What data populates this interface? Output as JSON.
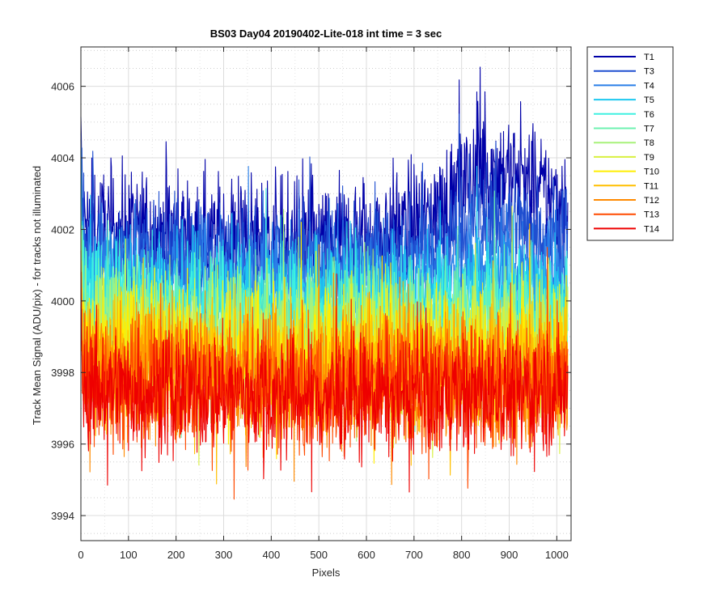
{
  "chart_data": {
    "type": "line",
    "title": "BS03 Day04 20190402-Lite-018 int time = 3 sec",
    "xlabel": "Pixels",
    "ylabel": "Track Mean Signal (ADU/pix) - for tracks not illuminated",
    "xlim": [
      0,
      1030
    ],
    "ylim": [
      3993.3,
      4007.1
    ],
    "x_ticks": [
      0,
      100,
      200,
      300,
      400,
      500,
      600,
      700,
      800,
      900,
      1000
    ],
    "y_ticks": [
      3994,
      3996,
      3998,
      4000,
      4002,
      4004,
      4006
    ],
    "grid": true,
    "minor_grid": true,
    "legend_position": "outside-right",
    "n_points": 1024,
    "series": [
      {
        "name": "T1",
        "color": "#0000a8",
        "mean_start": 4002.0,
        "mean_mid": 4001.6,
        "mean_end": 4002.8,
        "spread": 2.3
      },
      {
        "name": "T3",
        "color": "#1f4fd0",
        "mean_start": 4001.5,
        "mean_mid": 4001.0,
        "mean_end": 4001.8,
        "spread": 2.0
      },
      {
        "name": "T4",
        "color": "#2a7fe8",
        "mean_start": 4000.9,
        "mean_mid": 4000.5,
        "mean_end": 4000.9,
        "spread": 2.0
      },
      {
        "name": "T5",
        "color": "#1ec8f0",
        "mean_start": 4000.4,
        "mean_mid": 4000.0,
        "mean_end": 4000.2,
        "spread": 2.2
      },
      {
        "name": "T6",
        "color": "#3ef0e0",
        "mean_start": 4000.0,
        "mean_mid": 3999.6,
        "mean_end": 3999.8,
        "spread": 2.2
      },
      {
        "name": "T7",
        "color": "#6ef2b0",
        "mean_start": 3999.6,
        "mean_mid": 3999.2,
        "mean_end": 3999.3,
        "spread": 2.3
      },
      {
        "name": "T8",
        "color": "#a8f27a",
        "mean_start": 3999.2,
        "mean_mid": 3998.9,
        "mean_end": 3999.0,
        "spread": 2.3
      },
      {
        "name": "T9",
        "color": "#d8f040",
        "mean_start": 3999.0,
        "mean_mid": 3998.6,
        "mean_end": 3998.7,
        "spread": 2.4
      },
      {
        "name": "T10",
        "color": "#ffee00",
        "mean_start": 3998.8,
        "mean_mid": 3998.4,
        "mean_end": 3998.5,
        "spread": 2.4
      },
      {
        "name": "T11",
        "color": "#ffbf00",
        "mean_start": 3998.5,
        "mean_mid": 3998.1,
        "mean_end": 3998.2,
        "spread": 2.4
      },
      {
        "name": "T12",
        "color": "#ff8a00",
        "mean_start": 3998.2,
        "mean_mid": 3997.8,
        "mean_end": 3997.9,
        "spread": 2.4
      },
      {
        "name": "T13",
        "color": "#ff4a00",
        "mean_start": 3997.9,
        "mean_mid": 3997.6,
        "mean_end": 3997.7,
        "spread": 2.3
      },
      {
        "name": "T14",
        "color": "#ee0000",
        "mean_start": 3997.6,
        "mean_mid": 3997.3,
        "mean_end": 3997.5,
        "spread": 2.2
      }
    ]
  }
}
